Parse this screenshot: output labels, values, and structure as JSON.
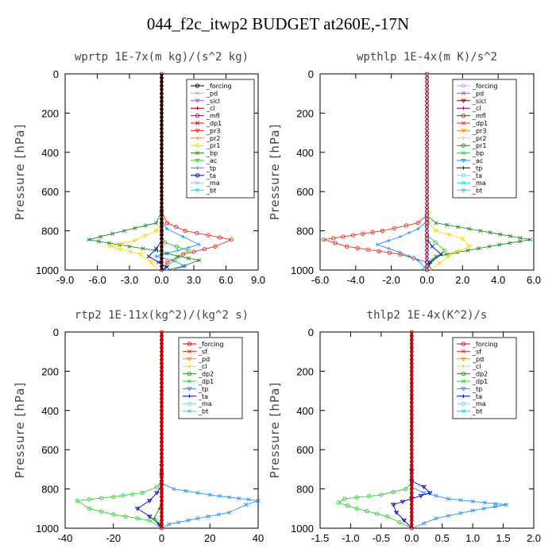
{
  "title": "044_f2c_itwp2  BUDGET at260E,-17N",
  "chart_data": [
    {
      "type": "line",
      "title": "wprtp  1E-7x(m kg)/(s^2 kg)",
      "ylabel": "Pressure [hPa]",
      "xlim": [
        -9,
        9
      ],
      "ylim": [
        1000,
        0
      ],
      "xticks": [
        "-9.0",
        "-6.0",
        "-3.0",
        "0.0",
        "3.0",
        "6.0",
        "9.0"
      ],
      "yticks": [
        "0",
        "200",
        "400",
        "600",
        "800",
        "1000"
      ],
      "legend": [
        "_forcing",
        "_pd",
        "_sicl",
        "_cl",
        "_mfl",
        "_dp1",
        "_pr3",
        "_pr2",
        "_pr1",
        "_bp",
        "_ac",
        "_tp",
        "_ta",
        "_ma",
        "_bt"
      ],
      "legend_colors": [
        "#000000",
        "#c8a0e6",
        "#8a5adc",
        "#8b0000",
        "#a00050",
        "#e00000",
        "#e83020",
        "#ff8c00",
        "#ffd700",
        "#228b22",
        "#32cd32",
        "#1e90ff",
        "#0000cd",
        "#87ceeb",
        "#00e5ee"
      ],
      "series": [
        {
          "name": "_dp1",
          "color": "#e83020",
          "x": [
            0,
            0,
            0.5,
            2.2,
            6.5,
            5.0,
            2.0,
            0.5,
            0.2
          ],
          "y": [
            0,
            700,
            760,
            800,
            845,
            880,
            920,
            960,
            1000
          ]
        },
        {
          "name": "_bp",
          "color": "#228b22",
          "x": [
            0,
            0,
            -0.5,
            -3.5,
            -6.8,
            -3.0,
            -0.5,
            1.5,
            3.5,
            2.0,
            0.5
          ],
          "y": [
            0,
            700,
            760,
            800,
            845,
            880,
            900,
            930,
            950,
            980,
            1000
          ]
        },
        {
          "name": "_pr1",
          "color": "#ffd700",
          "x": [
            0,
            0,
            -0.5,
            -2.5,
            -4.8,
            -2.0,
            -1.0,
            -0.3
          ],
          "y": [
            0,
            760,
            800,
            850,
            880,
            920,
            960,
            1000
          ]
        },
        {
          "name": "_tp",
          "color": "#1e90ff",
          "x": [
            0,
            0,
            0.5,
            2.0,
            3.5,
            1.5,
            -0.5,
            1.0,
            2.2,
            1.0
          ],
          "y": [
            0,
            750,
            790,
            830,
            870,
            900,
            930,
            950,
            980,
            1000
          ]
        },
        {
          "name": "_ac",
          "color": "#32cd32",
          "x": [
            0,
            0,
            0.3,
            2.5,
            1.2,
            0
          ],
          "y": [
            0,
            820,
            860,
            900,
            950,
            1000
          ]
        },
        {
          "name": "_ta",
          "color": "#0000cd",
          "x": [
            0,
            0,
            -0.5,
            -1.2,
            -0.3,
            0.5,
            0
          ],
          "y": [
            0,
            850,
            890,
            930,
            960,
            985,
            1000
          ]
        },
        {
          "name": "_forcing",
          "color": "#000000",
          "x": [
            0,
            0
          ],
          "y": [
            0,
            1000
          ]
        }
      ]
    },
    {
      "type": "line",
      "title": "wpthlp  1E-4x(m K)/s^2",
      "ylabel": "Pressure [hPa]",
      "xlim": [
        -6,
        6
      ],
      "ylim": [
        1000,
        0
      ],
      "xticks": [
        "-6.0",
        "-4.0",
        "-2.0",
        "0.0",
        "2.0",
        "4.0",
        "6.0"
      ],
      "yticks": [
        "0",
        "200",
        "400",
        "600",
        "800",
        "1000"
      ],
      "legend": [
        "_forcing",
        "_pd",
        "_sicl",
        "_cl",
        "_mfl",
        "_dp1",
        "_pr3",
        "_pr2",
        "_pr1",
        "_bp",
        "_ac",
        "_tp",
        "_ta",
        "_ma",
        "_bt"
      ],
      "legend_colors": [
        "#c8a0e6",
        "#8a5adc",
        "#8b0000",
        "#a00050",
        "#e00000",
        "#e83020",
        "#ff8c00",
        "#ffd700",
        "#228b22",
        "#32cd32",
        "#1e90ff",
        "#0000cd",
        "#87ceeb",
        "#00e5ee",
        "#00e5ee"
      ],
      "series": [
        {
          "name": "_dp1",
          "color": "#e83020",
          "x": [
            0,
            0,
            -0.5,
            -2.5,
            -5.8,
            -4.5,
            -1.5,
            0,
            0.3
          ],
          "y": [
            0,
            720,
            760,
            800,
            845,
            880,
            920,
            960,
            1000
          ]
        },
        {
          "name": "_bp",
          "color": "#228b22",
          "x": [
            0,
            0,
            0.5,
            3.0,
            5.8,
            3.5,
            0.5,
            -0.3
          ],
          "y": [
            0,
            720,
            760,
            800,
            845,
            880,
            930,
            1000
          ]
        },
        {
          "name": "_pr1",
          "color": "#ffd700",
          "x": [
            0.1,
            0.1,
            0.5,
            2.0,
            2.4,
            1.2,
            0.2
          ],
          "y": [
            0,
            760,
            800,
            840,
            880,
            930,
            1000
          ]
        },
        {
          "name": "_tp",
          "color": "#1e90ff",
          "x": [
            0,
            0,
            -0.5,
            -1.5,
            -2.8,
            -1.5,
            -0.5,
            0
          ],
          "y": [
            0,
            750,
            790,
            830,
            870,
            910,
            950,
            1000
          ]
        },
        {
          "name": "_ac",
          "color": "#32cd32",
          "x": [
            0,
            0,
            0.5,
            1.0,
            0.3,
            0
          ],
          "y": [
            0,
            820,
            860,
            900,
            950,
            1000
          ]
        },
        {
          "name": "_ta",
          "color": "#0000cd",
          "x": [
            0,
            0,
            0.3,
            0.8,
            0.2,
            0
          ],
          "y": [
            0,
            840,
            880,
            920,
            960,
            1000
          ]
        },
        {
          "name": "_forcing",
          "color": "#c8a0e6",
          "x": [
            0,
            0
          ],
          "y": [
            0,
            1000
          ]
        }
      ]
    },
    {
      "type": "line",
      "title": "rtp2  1E-11x(kg^2)/(kg^2 s)",
      "ylabel": "Pressure [hPa]",
      "xlim": [
        -40,
        40
      ],
      "ylim": [
        1000,
        0
      ],
      "xticks": [
        "-40",
        "-20",
        "0",
        "20",
        "40"
      ],
      "yticks": [
        "0",
        "200",
        "400",
        "600",
        "800",
        "1000"
      ],
      "legend": [
        "_forcing",
        "_sf",
        "_pd",
        "_cl",
        "_dp2",
        "_dp1",
        "_tp",
        "_ta",
        "_ma",
        "_bt"
      ],
      "legend_colors": [
        "#e00000",
        "#e83020",
        "#ff8c00",
        "#ffd700",
        "#228b22",
        "#32cd32",
        "#1e90ff",
        "#0000cd",
        "#87ceeb",
        "#00e5ee"
      ],
      "series": [
        {
          "name": "_dp1",
          "color": "#32cd32",
          "x": [
            0,
            0,
            -2,
            -8,
            -20,
            -35,
            -30,
            -20,
            -5,
            0
          ],
          "y": [
            0,
            760,
            790,
            820,
            840,
            860,
            900,
            930,
            960,
            1000
          ]
        },
        {
          "name": "_tp",
          "color": "#1e90ff",
          "x": [
            0,
            0,
            5,
            20,
            40,
            35,
            28,
            15,
            3,
            0
          ],
          "y": [
            0,
            770,
            800,
            830,
            860,
            880,
            920,
            950,
            980,
            1000
          ]
        },
        {
          "name": "_ta",
          "color": "#0000cd",
          "x": [
            0,
            0,
            -2,
            -5,
            -10,
            -5,
            -1,
            0
          ],
          "y": [
            0,
            780,
            820,
            860,
            900,
            940,
            980,
            1000
          ]
        },
        {
          "name": "_dp2",
          "color": "#228b22",
          "x": [
            0,
            0,
            -1,
            -3,
            -0.5,
            0
          ],
          "y": [
            0,
            860,
            900,
            950,
            980,
            1000
          ]
        },
        {
          "name": "_forcing",
          "color": "#e00000",
          "x": [
            0,
            0
          ],
          "y": [
            0,
            1000
          ]
        }
      ]
    },
    {
      "type": "line",
      "title": "thlp2  1E-4x(K^2)/s",
      "ylabel": "Pressure [hPa]",
      "xlim": [
        -1.5,
        2.0
      ],
      "ylim": [
        1000,
        0
      ],
      "xticks": [
        "-1.5",
        "-1.0",
        "-0.5",
        "0.0",
        "0.5",
        "1.0",
        "1.5",
        "2.0"
      ],
      "yticks": [
        "0",
        "200",
        "400",
        "600",
        "800",
        "1000"
      ],
      "legend": [
        "_forcing",
        "_sf",
        "_pd",
        "_cl",
        "_dp2",
        "_dp1",
        "_tp",
        "_ta",
        "_ma",
        "_bt"
      ],
      "legend_colors": [
        "#e00000",
        "#e83020",
        "#ff8c00",
        "#ffd700",
        "#228b22",
        "#32cd32",
        "#1e90ff",
        "#0000cd",
        "#87ceeb",
        "#00e5ee"
      ],
      "series": [
        {
          "name": "_dp1",
          "color": "#32cd32",
          "x": [
            0,
            0,
            -0.1,
            -0.5,
            -1.1,
            -1.2,
            -0.9,
            -0.4,
            0
          ],
          "y": [
            0,
            770,
            800,
            830,
            850,
            870,
            900,
            940,
            1000
          ]
        },
        {
          "name": "_tp",
          "color": "#1e90ff",
          "x": [
            0,
            0,
            0.2,
            0.6,
            1.2,
            1.55,
            1.0,
            0.4,
            0
          ],
          "y": [
            0,
            790,
            820,
            850,
            870,
            880,
            910,
            950,
            1000
          ]
        },
        {
          "name": "_ta",
          "color": "#0000cd",
          "x": [
            0,
            0,
            0.2,
            0.3,
            0,
            -0.3,
            -0.25,
            0
          ],
          "y": [
            0,
            760,
            790,
            820,
            850,
            880,
            920,
            1000
          ]
        },
        {
          "name": "_forcing",
          "color": "#e00000",
          "x": [
            0,
            0
          ],
          "y": [
            0,
            1000
          ]
        }
      ]
    }
  ]
}
